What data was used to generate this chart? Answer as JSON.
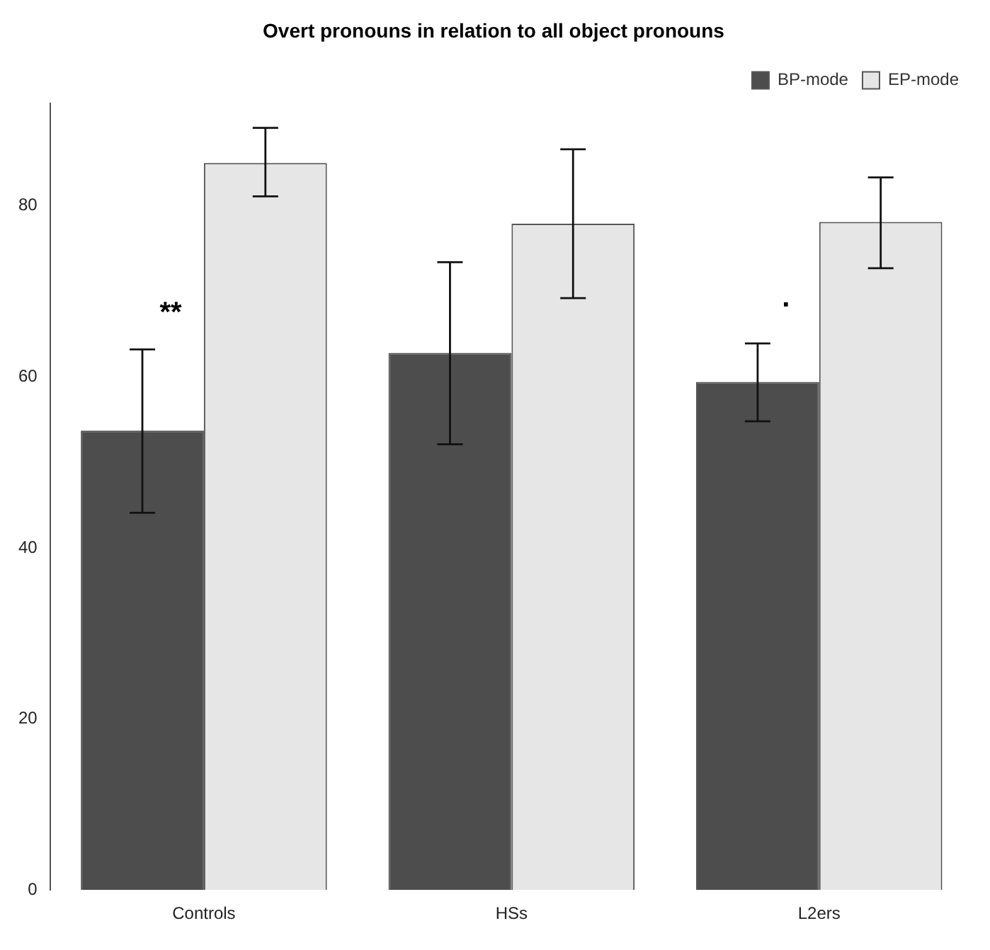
{
  "chart_data": {
    "type": "bar",
    "title": "Overt pronouns in relation to all object pronouns",
    "categories": [
      "Controls",
      "HSs",
      "L2ers"
    ],
    "series": [
      {
        "name": "BP-mode",
        "color": "#4d4d4d",
        "values": [
          53.7,
          62.8,
          59.4
        ],
        "errors": [
          [
            44.1,
            63.2
          ],
          [
            52.1,
            73.4
          ],
          [
            54.8,
            63.9
          ]
        ]
      },
      {
        "name": "EP-mode",
        "color": "#e6e6e6",
        "values": [
          85.0,
          77.9,
          78.1
        ],
        "errors": [
          [
            81.1,
            89.1
          ],
          [
            69.2,
            86.6
          ],
          [
            72.7,
            83.3
          ]
        ]
      }
    ],
    "ylim": [
      0,
      92
    ],
    "yticks": [
      0,
      20,
      40,
      60,
      80
    ],
    "grid": false,
    "legend": "top right",
    "annotations": [
      {
        "text": "**",
        "x": "Controls",
        "y": 67.4
      },
      {
        "text": ".",
        "x": "L2ers",
        "y": 69.1
      }
    ]
  }
}
